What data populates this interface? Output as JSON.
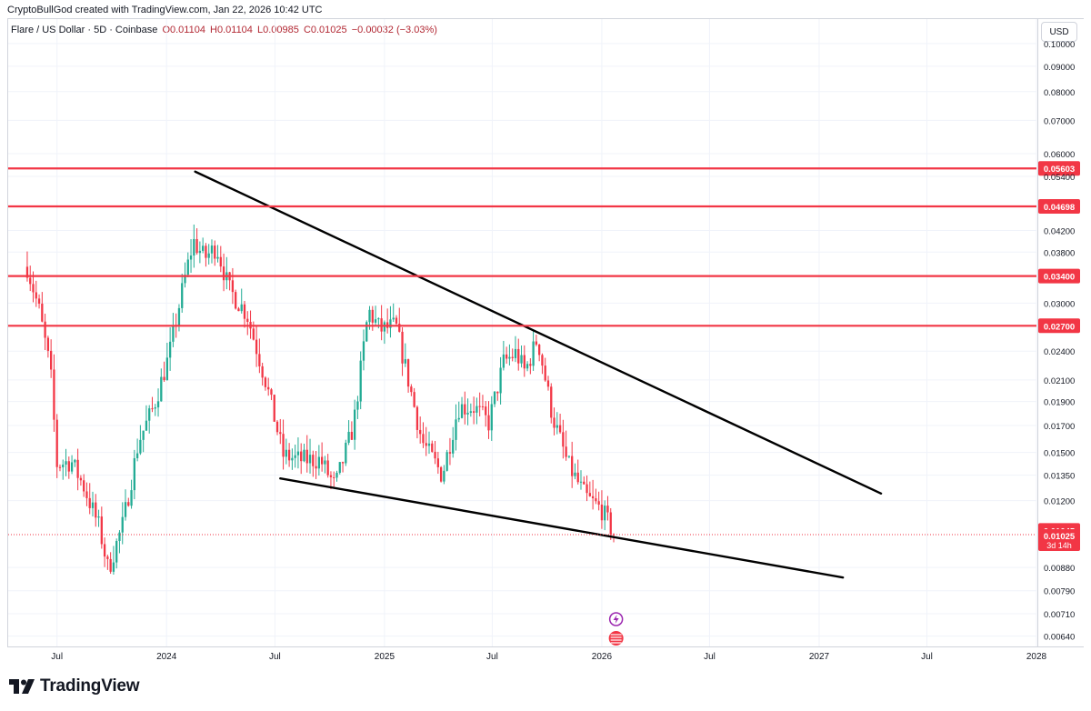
{
  "header": {
    "attribution": "CryptoBullGod created with TradingView.com, Jan 22, 2026 10:42 UTC"
  },
  "legend": {
    "symbol": "Flare / US Dollar · 5D · Coinbase",
    "open": "O0.01104",
    "high": "H0.01104",
    "low": "L0.00985",
    "close": "C0.01025",
    "change": "−0.00032 (−3.03%)"
  },
  "currency_button": "USD",
  "footer": {
    "brand": "TradingView",
    "logo_icon": "tradingview-logo-icon"
  },
  "colors": {
    "up": "#22ab94",
    "down": "#f23645",
    "level_line": "#f23645",
    "trendline": "#000000",
    "grid": "#f0f3fa",
    "axis_text": "#131722"
  },
  "chart_data": {
    "type": "candlestick",
    "symbol": "FLR/USD",
    "interval": "5D",
    "exchange": "Coinbase",
    "y_scale": "log",
    "ylim": [
      0.0061,
      0.112
    ],
    "xlim": [
      "2023-04-10",
      "2028-01-01"
    ],
    "y_ticks": [
      "0.10000",
      "0.09000",
      "0.08000",
      "0.07000",
      "0.06000",
      "0.05400",
      "0.04200",
      "0.03800",
      "0.03000",
      "0.02400",
      "0.02100",
      "0.01900",
      "0.01700",
      "0.01500",
      "0.01350",
      "0.01200",
      "0.00880",
      "0.00790",
      "0.00710",
      "0.00640"
    ],
    "x_ticks": [
      {
        "label": "Jul",
        "date": "2023-07-01"
      },
      {
        "label": "2024",
        "date": "2024-01-01"
      },
      {
        "label": "Jul",
        "date": "2024-07-01"
      },
      {
        "label": "2025",
        "date": "2025-01-01"
      },
      {
        "label": "Jul",
        "date": "2025-07-01"
      },
      {
        "label": "2026",
        "date": "2026-01-01"
      },
      {
        "label": "Jul",
        "date": "2026-07-01"
      },
      {
        "label": "2027",
        "date": "2027-01-01"
      },
      {
        "label": "Jul",
        "date": "2027-07-01"
      },
      {
        "label": "2028",
        "date": "2028-01-01"
      }
    ],
    "horizontal_levels": [
      {
        "price": 0.05603,
        "label": "0.05603"
      },
      {
        "price": 0.04698,
        "label": "0.04698"
      },
      {
        "price": 0.034,
        "label": "0.03400"
      },
      {
        "price": 0.027,
        "label": "0.02700"
      }
    ],
    "price_labels": {
      "prev_close": {
        "price": 0.01045,
        "label": "0.01045"
      },
      "last": {
        "price": 0.01025,
        "label": "0.01025"
      },
      "countdown": "3d 14h"
    },
    "trendlines": [
      {
        "name": "",
        "from": {
          "date": "2024-02-18",
          "price": 0.0552
        },
        "to": {
          "date": "2027-04-15",
          "price": 0.0124
        }
      },
      {
        "name": "",
        "from": {
          "date": "2024-07-10",
          "price": 0.0133
        },
        "to": {
          "date": "2027-02-10",
          "price": 0.0084
        }
      }
    ],
    "anchors": [
      {
        "date": "2023-05-12",
        "price": 0.0355
      },
      {
        "date": "2023-06-01",
        "price": 0.029
      },
      {
        "date": "2023-06-20",
        "price": 0.022
      },
      {
        "date": "2023-07-01",
        "price": 0.0142
      },
      {
        "date": "2023-07-25",
        "price": 0.0144
      },
      {
        "date": "2023-08-15",
        "price": 0.0128
      },
      {
        "date": "2023-09-10",
        "price": 0.0106
      },
      {
        "date": "2023-09-25",
        "price": 0.0087
      },
      {
        "date": "2023-10-20",
        "price": 0.0108
      },
      {
        "date": "2023-11-15",
        "price": 0.0158
      },
      {
        "date": "2023-12-10",
        "price": 0.0185
      },
      {
        "date": "2024-01-05",
        "price": 0.0235
      },
      {
        "date": "2024-01-30",
        "price": 0.033
      },
      {
        "date": "2024-02-15",
        "price": 0.04
      },
      {
        "date": "2024-03-05",
        "price": 0.037
      },
      {
        "date": "2024-03-25",
        "price": 0.039
      },
      {
        "date": "2024-04-15",
        "price": 0.032
      },
      {
        "date": "2024-05-15",
        "price": 0.0285
      },
      {
        "date": "2024-06-15",
        "price": 0.021
      },
      {
        "date": "2024-07-15",
        "price": 0.0148
      },
      {
        "date": "2024-08-10",
        "price": 0.0145
      },
      {
        "date": "2024-09-15",
        "price": 0.0145
      },
      {
        "date": "2024-10-10",
        "price": 0.0128
      },
      {
        "date": "2024-11-10",
        "price": 0.017
      },
      {
        "date": "2024-12-05",
        "price": 0.029
      },
      {
        "date": "2024-12-25",
        "price": 0.0265
      },
      {
        "date": "2025-01-20",
        "price": 0.027
      },
      {
        "date": "2025-02-10",
        "price": 0.021
      },
      {
        "date": "2025-03-05",
        "price": 0.0158
      },
      {
        "date": "2025-04-08",
        "price": 0.0135
      },
      {
        "date": "2025-05-05",
        "price": 0.0185
      },
      {
        "date": "2025-06-01",
        "price": 0.0185
      },
      {
        "date": "2025-06-25",
        "price": 0.0172
      },
      {
        "date": "2025-07-20",
        "price": 0.0228
      },
      {
        "date": "2025-08-10",
        "price": 0.0238
      },
      {
        "date": "2025-08-25",
        "price": 0.0218
      },
      {
        "date": "2025-09-15",
        "price": 0.0255
      },
      {
        "date": "2025-10-10",
        "price": 0.0178
      },
      {
        "date": "2025-11-05",
        "price": 0.0142
      },
      {
        "date": "2025-12-05",
        "price": 0.0122
      },
      {
        "date": "2026-01-01",
        "price": 0.0115
      },
      {
        "date": "2026-01-22",
        "price": 0.01025
      }
    ]
  },
  "event_markers": [
    {
      "date": "2026-01-25",
      "icon": "lightning-icon",
      "color": "#9c27b0"
    },
    {
      "date": "2026-01-25",
      "icon": "us-flag-icon",
      "color": "#f23645"
    }
  ]
}
